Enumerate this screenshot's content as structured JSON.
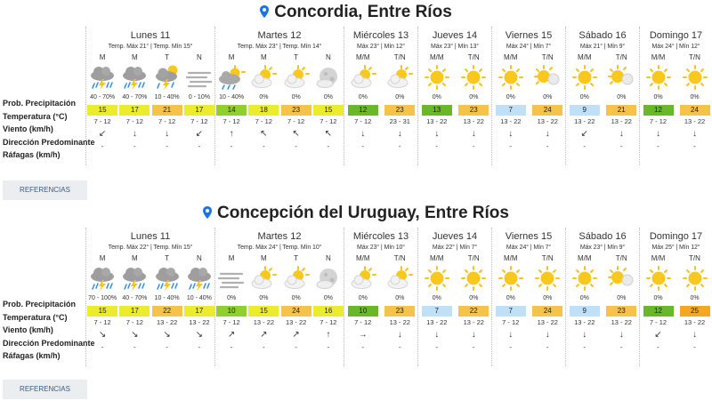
{
  "labels": [
    "Prob. Precipitación",
    "Temperatura (°C)",
    "Viento (km/h)",
    "Dirección Predominante",
    "Ráfagas (km/h)"
  ],
  "references_label": "REFERENCIAS",
  "colors": {
    "pin": "#1a73e8",
    "temp_high": "#f5c24a",
    "temp_mid": "#ecec2e",
    "temp_green": "#8fcf2e",
    "temp_dark": "#68b82a",
    "temp_cool": "#bfe0f7"
  },
  "cities": [
    {
      "name": "Concordia, Entre Ríos",
      "days": [
        {
          "name": "Lunes 11",
          "sub": "Temp. Máx 21° | Temp. Mín 15°",
          "slots": [
            {
              "label": "M",
              "icon": "storm-rain-icon",
              "prec": "40 - 70%",
              "temp": "15",
              "color": "#ecec2e",
              "wind": "7 - 12",
              "dir": "↙",
              "gust": "-"
            },
            {
              "label": "M",
              "icon": "storm-rain-icon",
              "prec": "40 - 70%",
              "temp": "17",
              "color": "#ecec2e",
              "wind": "7 - 12",
              "dir": "↓",
              "gust": "-"
            },
            {
              "label": "T",
              "icon": "storm-sun-icon",
              "prec": "10 - 40%",
              "temp": "21",
              "color": "#f5c24a",
              "wind": "7 - 12",
              "dir": "↓",
              "gust": "-"
            },
            {
              "label": "N",
              "icon": "fog-icon",
              "prec": "0 - 10%",
              "temp": "17",
              "color": "#ecec2e",
              "wind": "7 - 12",
              "dir": "↙",
              "gust": "-"
            }
          ]
        },
        {
          "name": "Martes 12",
          "sub": "Temp. Máx 23° | Temp. Mín 14°",
          "slots": [
            {
              "label": "M",
              "icon": "cloud-rain-icon",
              "prec": "10 - 40%",
              "temp": "14",
              "color": "#8fcf2e",
              "wind": "7 - 12",
              "dir": "↑",
              "gust": "-"
            },
            {
              "label": "M",
              "icon": "partly-cloudy-icon",
              "prec": "0%",
              "temp": "18",
              "color": "#ecec2e",
              "wind": "7 - 12",
              "dir": "↖",
              "gust": "-"
            },
            {
              "label": "T",
              "icon": "partly-cloudy-icon",
              "prec": "0%",
              "temp": "23",
              "color": "#f5c24a",
              "wind": "7 - 12",
              "dir": "↖",
              "gust": "-"
            },
            {
              "label": "N",
              "icon": "cloudy-night-icon",
              "prec": "0%",
              "temp": "15",
              "color": "#ecec2e",
              "wind": "7 - 12",
              "dir": "↖",
              "gust": "-"
            }
          ]
        },
        {
          "name": "Miércoles 13",
          "sub": "Máx 23° | Mín 12°",
          "slots": [
            {
              "label": "M/M",
              "icon": "partly-cloudy-icon",
              "prec": "0%",
              "temp": "12",
              "color": "#68b82a",
              "wind": "7 - 12",
              "dir": "↓",
              "gust": "-"
            },
            {
              "label": "T/N",
              "icon": "partly-cloudy-icon",
              "prec": "0%",
              "temp": "23",
              "color": "#f5c24a",
              "wind": "23 - 31",
              "dir": "↓",
              "gust": "-"
            }
          ]
        },
        {
          "name": "Jueves 14",
          "sub": "Máx 23° | Mín 13°",
          "slots": [
            {
              "label": "M/M",
              "icon": "sun-icon",
              "prec": "0%",
              "temp": "13",
              "color": "#68b82a",
              "wind": "13 - 22",
              "dir": "↓",
              "gust": "-"
            },
            {
              "label": "T/N",
              "icon": "sun-icon",
              "prec": "0%",
              "temp": "23",
              "color": "#f5c24a",
              "wind": "13 - 22",
              "dir": "↓",
              "gust": "-"
            }
          ]
        },
        {
          "name": "Viernes 15",
          "sub": "Máx 24° | Mín 7°",
          "slots": [
            {
              "label": "M/M",
              "icon": "sun-icon",
              "prec": "0%",
              "temp": "7",
              "color": "#bfe0f7",
              "wind": "13 - 22",
              "dir": "↓",
              "gust": "-"
            },
            {
              "label": "T/N",
              "icon": "sun-cloud-icon",
              "prec": "0%",
              "temp": "24",
              "color": "#f5c24a",
              "wind": "13 - 22",
              "dir": "↓",
              "gust": "-"
            }
          ]
        },
        {
          "name": "Sábado 16",
          "sub": "Máx 21° | Mín 9°",
          "slots": [
            {
              "label": "M/M",
              "icon": "sun-icon",
              "prec": "0%",
              "temp": "9",
              "color": "#bfe0f7",
              "wind": "13 - 22",
              "dir": "↙",
              "gust": "-"
            },
            {
              "label": "T/N",
              "icon": "sun-cloud-icon",
              "prec": "0%",
              "temp": "21",
              "color": "#f5c24a",
              "wind": "13 - 22",
              "dir": "↓",
              "gust": "-"
            }
          ]
        },
        {
          "name": "Domingo 17",
          "sub": "Máx 24° | Mín 12°",
          "slots": [
            {
              "label": "M/M",
              "icon": "sun-icon",
              "prec": "0%",
              "temp": "12",
              "color": "#68b82a",
              "wind": "7 - 12",
              "dir": "↓",
              "gust": "-"
            },
            {
              "label": "T/N",
              "icon": "sun-icon",
              "prec": "0%",
              "temp": "24",
              "color": "#f5c24a",
              "wind": "13 - 22",
              "dir": "↓",
              "gust": "-"
            }
          ]
        }
      ]
    },
    {
      "name": "Concepción del Uruguay, Entre Ríos",
      "days": [
        {
          "name": "Lunes 11",
          "sub": "Temp. Máx 22° | Temp. Mín 15°",
          "slots": [
            {
              "label": "M",
              "icon": "storm-rain-icon",
              "prec": "70 - 100%",
              "temp": "15",
              "color": "#ecec2e",
              "wind": "7 - 12",
              "dir": "↘",
              "gust": "-"
            },
            {
              "label": "M",
              "icon": "storm-rain-icon",
              "prec": "40 - 70%",
              "temp": "17",
              "color": "#ecec2e",
              "wind": "7 - 12",
              "dir": "↘",
              "gust": "-"
            },
            {
              "label": "T",
              "icon": "storm-rain-icon",
              "prec": "10 - 40%",
              "temp": "22",
              "color": "#f5c24a",
              "wind": "13 - 22",
              "dir": "↘",
              "gust": "-"
            },
            {
              "label": "N",
              "icon": "storm-rain-icon",
              "prec": "10 - 40%",
              "temp": "17",
              "color": "#ecec2e",
              "wind": "13 - 22",
              "dir": "↘",
              "gust": "-"
            }
          ]
        },
        {
          "name": "Martes 12",
          "sub": "Temp. Máx 24° | Temp. Mín 10°",
          "slots": [
            {
              "label": "M",
              "icon": "fog-icon",
              "prec": "0%",
              "temp": "10",
              "color": "#8fcf2e",
              "wind": "7 - 12",
              "dir": "↗",
              "gust": "-"
            },
            {
              "label": "M",
              "icon": "partly-cloudy-icon",
              "prec": "0%",
              "temp": "15",
              "color": "#ecec2e",
              "wind": "13 - 22",
              "dir": "↗",
              "gust": "-"
            },
            {
              "label": "T",
              "icon": "partly-cloudy-icon",
              "prec": "0%",
              "temp": "24",
              "color": "#f5c24a",
              "wind": "13 - 22",
              "dir": "↗",
              "gust": "-"
            },
            {
              "label": "N",
              "icon": "cloudy-night-icon",
              "prec": "0%",
              "temp": "16",
              "color": "#ecec2e",
              "wind": "7 - 12",
              "dir": "↑",
              "gust": "-"
            }
          ]
        },
        {
          "name": "Miércoles 13",
          "sub": "Máx 23° | Mín 10°",
          "slots": [
            {
              "label": "M/M",
              "icon": "partly-cloudy-icon",
              "prec": "0%",
              "temp": "10",
              "color": "#68b82a",
              "wind": "7 - 12",
              "dir": "→",
              "gust": "-"
            },
            {
              "label": "T/N",
              "icon": "partly-cloudy-icon",
              "prec": "0%",
              "temp": "23",
              "color": "#f5c24a",
              "wind": "13 - 22",
              "dir": "↓",
              "gust": "-"
            }
          ]
        },
        {
          "name": "Jueves 14",
          "sub": "Máx 22° | Mín 7°",
          "slots": [
            {
              "label": "M/M",
              "icon": "sun-icon",
              "prec": "0%",
              "temp": "7",
              "color": "#bfe0f7",
              "wind": "13 - 22",
              "dir": "↓",
              "gust": "-"
            },
            {
              "label": "T/N",
              "icon": "sun-icon",
              "prec": "0%",
              "temp": "22",
              "color": "#f5c24a",
              "wind": "13 - 22",
              "dir": "↓",
              "gust": "-"
            }
          ]
        },
        {
          "name": "Viernes 15",
          "sub": "Máx 24° | Mín 7°",
          "slots": [
            {
              "label": "M/M",
              "icon": "sun-icon",
              "prec": "0%",
              "temp": "7",
              "color": "#bfe0f7",
              "wind": "7 - 12",
              "dir": "↓",
              "gust": "-"
            },
            {
              "label": "T/N",
              "icon": "sun-icon",
              "prec": "0%",
              "temp": "24",
              "color": "#f5c24a",
              "wind": "13 - 22",
              "dir": "↓",
              "gust": "-"
            }
          ]
        },
        {
          "name": "Sábado 16",
          "sub": "Máx 23° | Mín 9°",
          "slots": [
            {
              "label": "M/M",
              "icon": "sun-icon",
              "prec": "0%",
              "temp": "9",
              "color": "#bfe0f7",
              "wind": "13 - 22",
              "dir": "↓",
              "gust": "-"
            },
            {
              "label": "T/N",
              "icon": "sun-cloud-icon",
              "prec": "0%",
              "temp": "23",
              "color": "#f5c24a",
              "wind": "13 - 22",
              "dir": "↓",
              "gust": "-"
            }
          ]
        },
        {
          "name": "Domingo 17",
          "sub": "Máx 25° | Mín 12°",
          "slots": [
            {
              "label": "M/M",
              "icon": "sun-icon",
              "prec": "0%",
              "temp": "12",
              "color": "#68b82a",
              "wind": "7 - 12",
              "dir": "↙",
              "gust": "-"
            },
            {
              "label": "T/N",
              "icon": "sun-icon",
              "prec": "0%",
              "temp": "25",
              "color": "#f5a623",
              "wind": "13 - 22",
              "dir": "↓",
              "gust": "-"
            }
          ]
        }
      ]
    }
  ]
}
